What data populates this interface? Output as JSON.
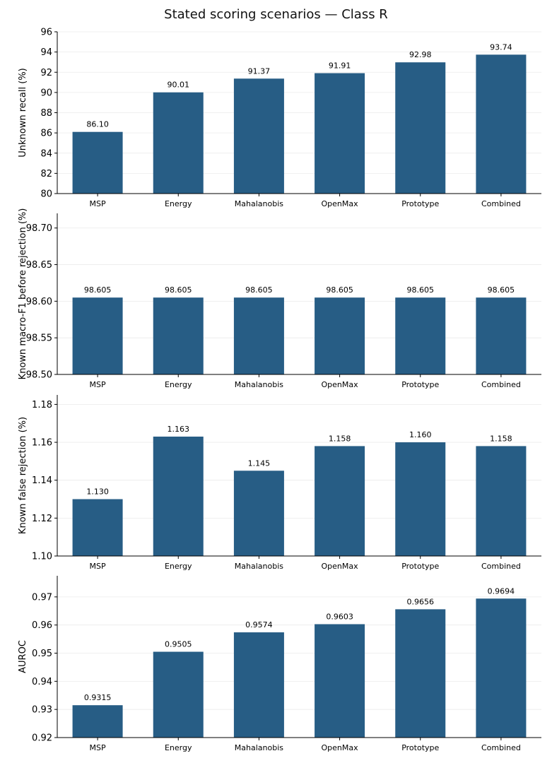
{
  "title": "Stated scoring scenarios — Class R",
  "colors": {
    "bar": "#275d85",
    "axis": "#000000",
    "grid": "#ebebeb"
  },
  "chart_data": [
    {
      "type": "bar",
      "title": "",
      "categories": [
        "MSP",
        "Energy",
        "Mahalanobis",
        "OpenMax",
        "Prototype",
        "Combined"
      ],
      "values": [
        86.1,
        90.01,
        91.37,
        91.91,
        92.98,
        93.74
      ],
      "value_labels": [
        "86.10",
        "90.01",
        "91.37",
        "91.91",
        "92.98",
        "93.74"
      ],
      "xlabel": "",
      "ylabel": "Unknown recall (%)",
      "ylim": [
        80,
        96
      ],
      "yticks": [
        80,
        82,
        84,
        86,
        88,
        90,
        92,
        94,
        96
      ],
      "ytick_labels": [
        "80",
        "82",
        "84",
        "86",
        "88",
        "90",
        "92",
        "94",
        "96"
      ],
      "grid": true
    },
    {
      "type": "bar",
      "title": "",
      "categories": [
        "MSP",
        "Energy",
        "Mahalanobis",
        "OpenMax",
        "Prototype",
        "Combined"
      ],
      "values": [
        98.605,
        98.605,
        98.605,
        98.605,
        98.605,
        98.605
      ],
      "value_labels": [
        "98.605",
        "98.605",
        "98.605",
        "98.605",
        "98.605",
        "98.605"
      ],
      "xlabel": "",
      "ylabel": "Known macro-F1 before rejection (%)",
      "ylim": [
        98.5,
        98.72
      ],
      "yticks": [
        98.5,
        98.55,
        98.6,
        98.65,
        98.7
      ],
      "ytick_labels": [
        "98.50",
        "98.55",
        "98.60",
        "98.65",
        "98.70"
      ],
      "grid": true
    },
    {
      "type": "bar",
      "title": "",
      "categories": [
        "MSP",
        "Energy",
        "Mahalanobis",
        "OpenMax",
        "Prototype",
        "Combined"
      ],
      "values": [
        1.13,
        1.163,
        1.145,
        1.158,
        1.16,
        1.158
      ],
      "value_labels": [
        "1.130",
        "1.163",
        "1.145",
        "1.158",
        "1.160",
        "1.158"
      ],
      "xlabel": "",
      "ylabel": "Known false rejection (%)",
      "ylim": [
        1.1,
        1.185
      ],
      "yticks": [
        1.1,
        1.12,
        1.14,
        1.16,
        1.18
      ],
      "ytick_labels": [
        "1.10",
        "1.12",
        "1.14",
        "1.16",
        "1.18"
      ],
      "grid": true
    },
    {
      "type": "bar",
      "title": "",
      "categories": [
        "MSP",
        "Energy",
        "Mahalanobis",
        "OpenMax",
        "Prototype",
        "Combined"
      ],
      "values": [
        0.9315,
        0.9505,
        0.9574,
        0.9603,
        0.9656,
        0.9694
      ],
      "value_labels": [
        "0.9315",
        "0.9505",
        "0.9574",
        "0.9603",
        "0.9656",
        "0.9694"
      ],
      "xlabel": "",
      "ylabel": "AUROC",
      "ylim": [
        0.92,
        0.9775
      ],
      "yticks": [
        0.92,
        0.93,
        0.94,
        0.95,
        0.96,
        0.97
      ],
      "ytick_labels": [
        "0.92",
        "0.93",
        "0.94",
        "0.95",
        "0.96",
        "0.97"
      ],
      "grid": true
    }
  ]
}
